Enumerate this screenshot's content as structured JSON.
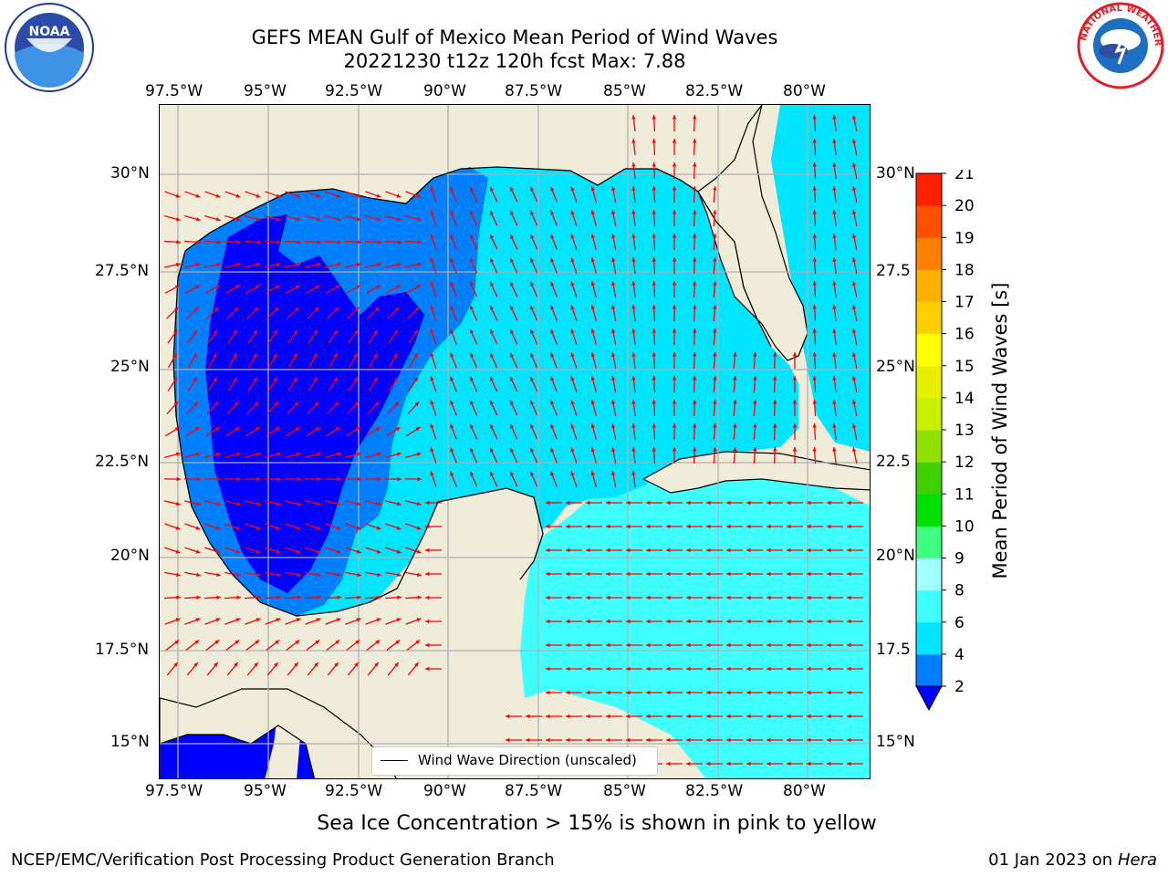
{
  "header": {
    "title_line1": "GEFS MEAN Gulf of Mexico Mean Period of Wind Waves",
    "title_line2": "20221230 t12z 120h fcst   Max: 7.88"
  },
  "map": {
    "lon_ticks": [
      "97.5°W",
      "95°W",
      "92.5°W",
      "90°W",
      "87.5°W",
      "85°W",
      "82.5°W",
      "80°W"
    ],
    "lat_ticks_left": [
      "30°N",
      "27.5°N",
      "25°N",
      "22.5°N",
      "20°N",
      "17.5°N",
      "15°N"
    ],
    "lat_ticks_right": [
      "30°N",
      "27.5",
      "25°N",
      "22.5",
      "20°N",
      "17.5",
      "15°N"
    ],
    "legend_label": "Wind Wave Direction (unscaled)",
    "colors": {
      "land": "#efecd9",
      "coast": "#000000",
      "grid": "#b0b0b0",
      "arrow": "#ff0000"
    }
  },
  "chart_data": {
    "type": "heatmap",
    "title": "GEFS MEAN Gulf of Mexico Mean Period of Wind Waves",
    "subtitle": "20221230 t12z 120h fcst   Max: 7.88",
    "field": "Mean Period of Wind Waves [s]",
    "max": 7.88,
    "xlim": [
      -98.5,
      -78.7
    ],
    "ylim": [
      14.0,
      31.8
    ],
    "colorbar": {
      "label": "Mean Period of Wind Waves [s]",
      "ticks": [
        2,
        4,
        6,
        8,
        9,
        10,
        11,
        12,
        13,
        14,
        15,
        16,
        17,
        18,
        19,
        20,
        21
      ],
      "colors": [
        "#0000ff",
        "#0080ff",
        "#00e5ff",
        "#40ffff",
        "#a0ffff",
        "#40ff80",
        "#00e000",
        "#40d000",
        "#90e000",
        "#c8f000",
        "#e8f000",
        "#ffff00",
        "#ffd000",
        "#ffb000",
        "#ff8000",
        "#ff5000",
        "#ff2000",
        "#ff0000"
      ]
    },
    "legend": [
      "Wind Wave Direction (unscaled)"
    ]
  },
  "notes": {
    "sea_ice": "Sea Ice Concentration > 15% is shown in pink to yellow",
    "credit": "NCEP/EMC/Verification Post Processing Product Generation Branch",
    "date_prefix": "01 Jan 2023 on ",
    "date_host": "Hera"
  },
  "logos": {
    "left": "NOAA",
    "right": "NATIONAL WEATHER SERVICE"
  }
}
